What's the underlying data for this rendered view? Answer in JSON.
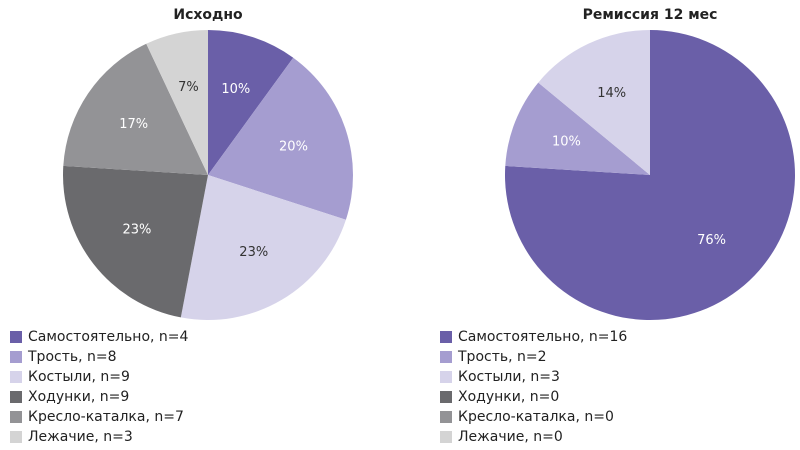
{
  "chart_data": [
    {
      "type": "pie",
      "title": "Исходно",
      "categories": [
        "Самостоятельно, n=4",
        "Трость, n=8",
        "Костыли, n=9",
        "Ходунки, n=9",
        "Кресло-каталка, n=7",
        "Лежачие, n=3"
      ],
      "values": [
        10,
        20,
        23,
        23,
        17,
        7
      ],
      "value_labels": [
        "10%",
        "20%",
        "23%",
        "23%",
        "17%",
        "7%"
      ],
      "colors": [
        "#6a5fa8",
        "#a59dd0",
        "#d6d3ea",
        "#6a6a6d",
        "#939396",
        "#d4d4d4"
      ]
    },
    {
      "type": "pie",
      "title": "Ремиссия 12 мес",
      "categories": [
        "Самостоятельно, n=16",
        "Трость, n=2",
        "Костыли, n=3",
        "Ходунки, n=0",
        "Кресло-каталка, n=0",
        "Лежачие, n=0"
      ],
      "values": [
        76,
        10,
        14,
        0,
        0,
        0
      ],
      "value_labels": [
        "76%",
        "10%",
        "14%",
        null,
        null,
        null
      ],
      "colors": [
        "#6a5fa8",
        "#a59dd0",
        "#d6d3ea",
        "#6a6a6d",
        "#939396",
        "#d4d4d4"
      ]
    }
  ]
}
